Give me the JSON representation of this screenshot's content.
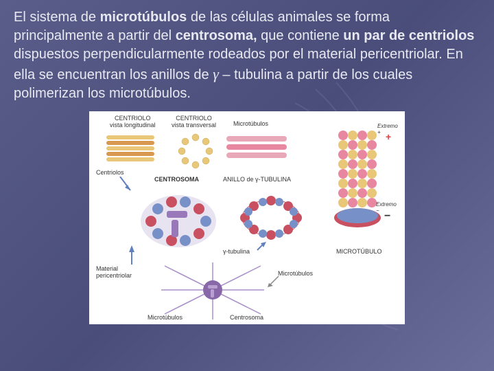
{
  "slide": {
    "paragraph": {
      "parts": [
        {
          "text": "El sistema de ",
          "bold": false
        },
        {
          "text": "microtúbulos",
          "bold": true
        },
        {
          "text": " de las células animales se forma principalmente a partir del ",
          "bold": false
        },
        {
          "text": "centrosoma,",
          "bold": true
        },
        {
          "text": " que contiene ",
          "bold": false
        },
        {
          "text": "un par de centriolos",
          "bold": true
        },
        {
          "text": " dispuestos perpendicularmente rodeados por el material pericentriolar. En ella se encuentran los anillos de ",
          "bold": false
        },
        {
          "text": "γ",
          "bold": false,
          "gamma": true
        },
        {
          "text": " – tubulina a partir de los cuales polimerizan los microtúbulos.",
          "bold": false
        }
      ]
    },
    "diagram": {
      "labels": {
        "centriolo_long": "CENTRIOLO\nvista longitudinal",
        "centriolo_trans": "CENTRIOLO\nvista transversal",
        "microtubulos_top": "Microtúbulos",
        "centriolos_left": "Centriolos",
        "centrosoma_mid": "CENTROSOMA",
        "anillo": "ANILLO de γ-TUBULINA",
        "extremo_plus": "Extremo\n+",
        "extremo_minus": "Extremo\n−",
        "gamma_tubulina": "γ-tubulina",
        "microtubulo_right": "MICROTÚBULO",
        "material": "Material\npericentriolar",
        "microtubulos_bot": "Microtúbulos",
        "microtubulos_bot2": "Microtúbulos",
        "centrosoma_bot": "Centrosoma"
      },
      "colors": {
        "tube_yellow": "#e8c878",
        "tube_orange": "#d89850",
        "sphere_pink": "#e888a0",
        "sphere_red": "#c85060",
        "sphere_blue": "#7890c8",
        "centrosome_purple": "#9878b8",
        "plus_red": "#e04040",
        "bg": "#ffffff"
      }
    }
  },
  "styling": {
    "slide_bg_gradient": [
      "#5a5d8a",
      "#4a4d7a",
      "#6a6d9a"
    ],
    "text_color": "#e8e8f0",
    "font_size_body": 20,
    "font_family": "Trebuchet MS",
    "diagram_width": 460,
    "diagram_height": 310
  }
}
